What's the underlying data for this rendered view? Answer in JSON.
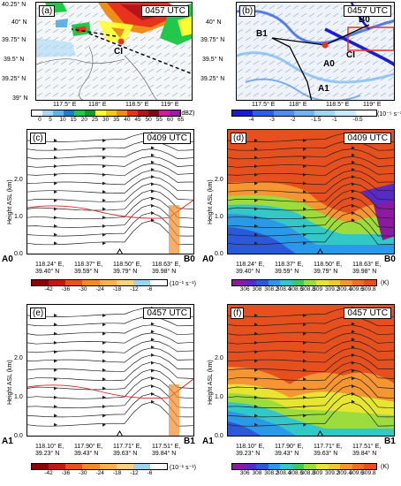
{
  "panels": {
    "a": {
      "label": "(a)",
      "time": "0457 UTC",
      "ci": "CI",
      "lat_ticks": [
        "40.25° N",
        "40° N",
        "39.75° N",
        "39.5° N",
        "39.25° N",
        "39° N"
      ],
      "lon_ticks": [
        "117.5° E",
        "118° E",
        "118.5° E",
        "119° E"
      ]
    },
    "b": {
      "label": "(b)",
      "time": "0457 UTC",
      "ci": "CI",
      "points": {
        "b0": "B0",
        "b1": "B1",
        "a0": "A0",
        "a1": "A1"
      },
      "lat_ticks": [
        "40° N",
        "39.75° N",
        "39.5° N",
        "39.25° N"
      ],
      "lon_ticks": [
        "117.5° E",
        "118° E",
        "118.5° E",
        "119° E"
      ]
    },
    "c": {
      "label": "(c)",
      "time": "0409 UTC"
    },
    "d": {
      "label": "(d)",
      "time": "0409 UTC"
    },
    "e": {
      "label": "(e)",
      "time": "0457 UTC"
    },
    "f": {
      "label": "(f)",
      "time": "0457 UTC"
    }
  },
  "colorbars": {
    "dbz": {
      "ticks": [
        "0",
        "5",
        "10",
        "15",
        "20",
        "25",
        "30",
        "35",
        "40",
        "45",
        "50",
        "55",
        "60",
        "65"
      ],
      "unit": "(dBZ)",
      "colors": [
        "#ffffff",
        "#a6d8f5",
        "#5fb3e8",
        "#1f7dd1",
        "#22c84a",
        "#129b2e",
        "#ffff33",
        "#f2c81a",
        "#f08c19",
        "#e8321e",
        "#b4141e",
        "#7d0a14",
        "#d01aa0",
        "#9c1aaa"
      ]
    },
    "div": {
      "ticks": [
        "-4",
        "-3",
        "-2",
        "-1.5",
        "-1",
        "-0.5"
      ],
      "unit": "(10⁻⁵ s⁻¹)",
      "colors": [
        "#1a1ad9",
        "#2e5fe8",
        "#4d8ef0",
        "#6fb5f5",
        "#9dd6f8",
        "#c9ebfb",
        "#ffffff"
      ]
    },
    "w1": {
      "ticks": [
        "-42",
        "-36",
        "-30",
        "-24",
        "-18",
        "-12",
        "-6"
      ],
      "unit": "(10⁻¹ s⁻¹)",
      "colors": [
        "#8b0000",
        "#c81414",
        "#e8501e",
        "#f08c28",
        "#f5b450",
        "#fad282",
        "#9ad6f0",
        "#ffffff"
      ]
    },
    "theta1": {
      "ticks": [
        "306",
        "308",
        "308.2",
        "308.4",
        "308.6",
        "308.8",
        "309",
        "309.2",
        "309.4",
        "309.6",
        "309.8"
      ],
      "unit": "(K)",
      "colors": [
        "#8c1aa0",
        "#5a2ac8",
        "#2a5ad8",
        "#2a9ae8",
        "#32c8c8",
        "#3cc864",
        "#9cdc3c",
        "#e6e632",
        "#f0c832",
        "#f59632",
        "#ef6e28",
        "#e6501e"
      ]
    },
    "w2": {
      "ticks": [
        "-42",
        "-36",
        "-30",
        "-24",
        "-18",
        "-12",
        "-6"
      ],
      "unit": "(10⁻¹ s⁻¹)"
    },
    "theta2": {
      "ticks": [
        "306",
        "308",
        "308.2",
        "308.4",
        "308.6",
        "308.8",
        "309",
        "309.2",
        "309.4",
        "309.6",
        "309.8"
      ],
      "unit": "(K)"
    }
  },
  "cross_c": {
    "start": "A0",
    "end": "B0",
    "ylabel": "Height ASL (km)",
    "yticks": [
      "2.0",
      "1.0",
      "0.0"
    ],
    "xticks": [
      [
        "118.24° E,",
        "39.40° N"
      ],
      [
        "118.37° E,",
        "39.59° N"
      ],
      [
        "118.50° E,",
        "39.79° N"
      ],
      [
        "118.63° E,",
        "39.98° N"
      ]
    ]
  },
  "cross_d": {
    "start": "A0",
    "end": "B0",
    "ylabel": "Height ASL (km)",
    "yticks": [
      "2.0",
      "1.0",
      "0.0"
    ],
    "xticks": [
      [
        "118.24° E,",
        "39.40° N"
      ],
      [
        "118.37° E,",
        "39.59° N"
      ],
      [
        "118.50° E,",
        "39.79° N"
      ],
      [
        "118.63° E,",
        "39.98° N"
      ]
    ]
  },
  "cross_e": {
    "start": "A1",
    "end": "B1",
    "ylabel": "Height ASL (km)",
    "yticks": [
      "2.0",
      "1.0",
      "0.0"
    ],
    "xticks": [
      [
        "118.10° E,",
        "39.23° N"
      ],
      [
        "117.90° E,",
        "39.43° N"
      ],
      [
        "117.71° E,",
        "39.63° N"
      ],
      [
        "117.51° E,",
        "39.84° N"
      ]
    ]
  },
  "cross_f": {
    "start": "A1",
    "end": "B1",
    "ylabel": "Height ASL (km)",
    "yticks": [
      "2.0",
      "1.0",
      "0.0"
    ],
    "xticks": [
      [
        "118.10° E,",
        "39.23° N"
      ],
      [
        "117.90° E,",
        "39.43° N"
      ],
      [
        "117.71° E,",
        "39.63° N"
      ],
      [
        "117.51° E,",
        "39.84° N"
      ]
    ]
  },
  "contour_labels": {
    "c": [
      "309",
      "308.5",
      "308",
      "309",
      "308.5"
    ],
    "d": [
      "308.5",
      "308",
      "309",
      "308.5",
      "307"
    ],
    "f": [
      "308.5",
      "308",
      "309"
    ]
  }
}
